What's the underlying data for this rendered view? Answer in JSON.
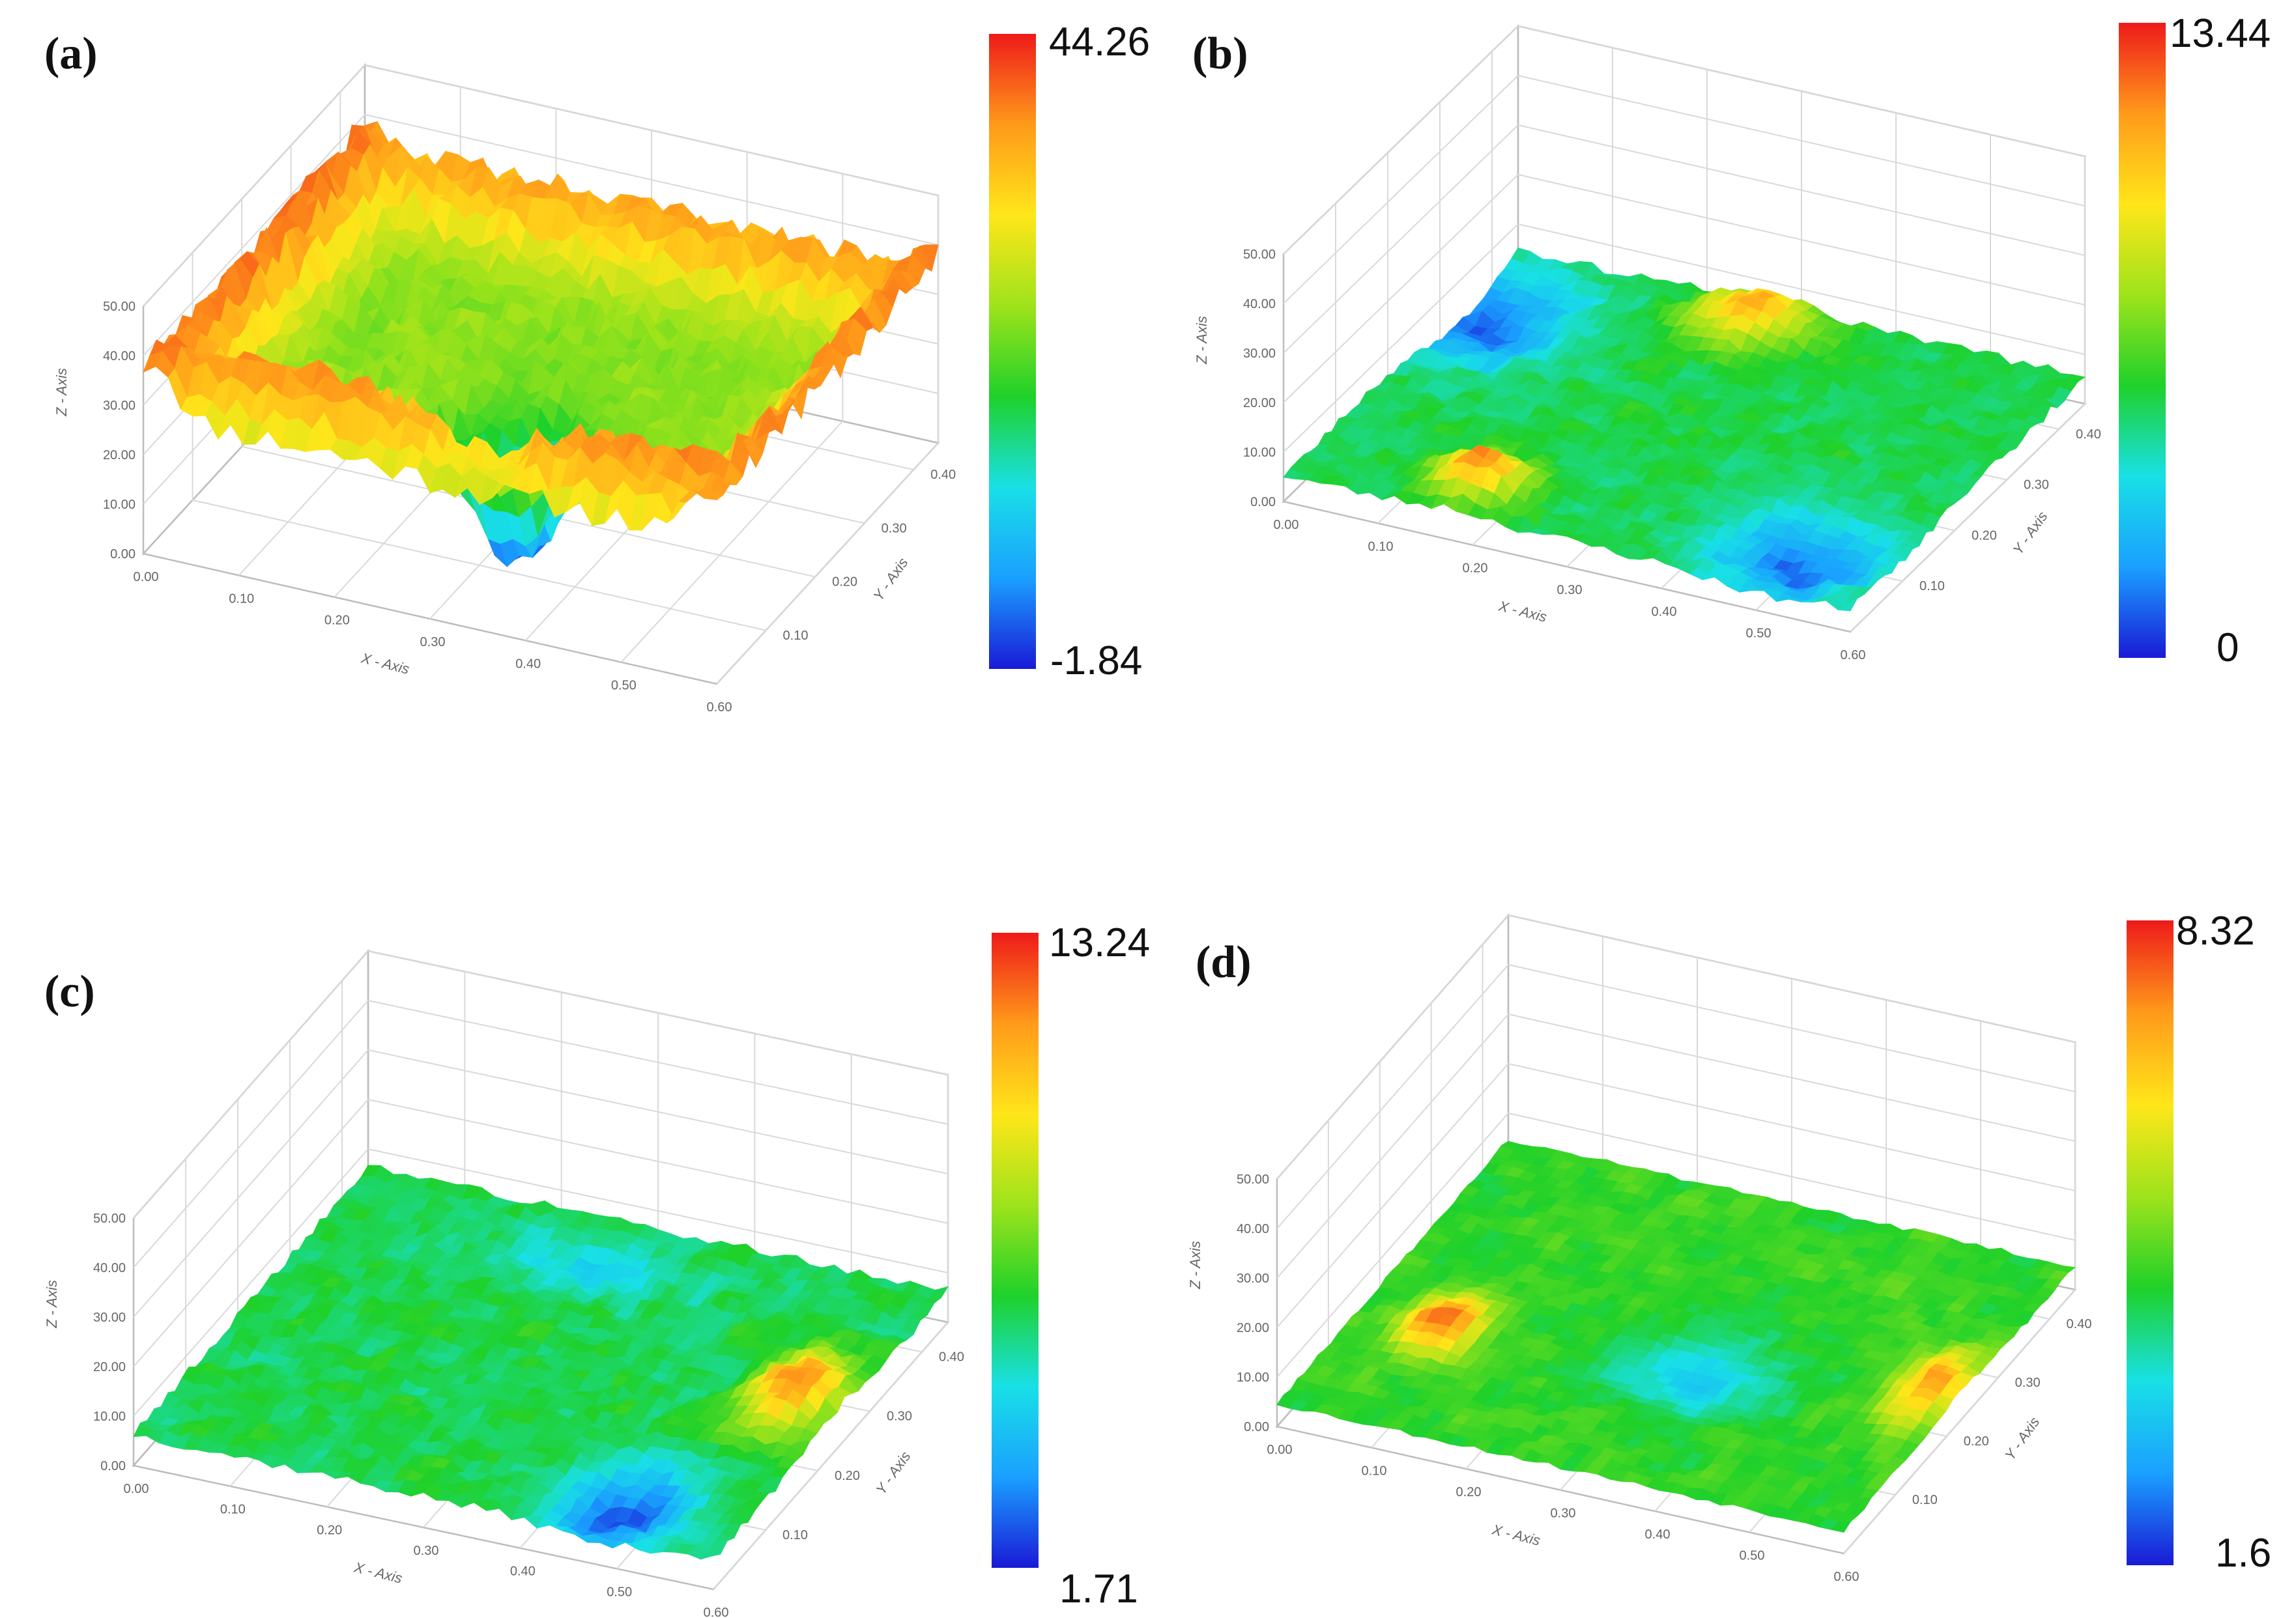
{
  "chart_data": [
    {
      "type": "surface",
      "panel_label": "(a)",
      "xlabel": "X - Axis",
      "ylabel": "Y - Axis",
      "zlabel": "Z - Axis",
      "xlim": [
        0,
        0.6
      ],
      "ylim": [
        0,
        0.45
      ],
      "zlim": [
        0,
        50
      ],
      "x_ticks": [
        "0.00",
        "0.10",
        "0.20",
        "0.30",
        "0.40",
        "0.50",
        "0.60"
      ],
      "y_ticks": [
        "0.10",
        "0.20",
        "0.30",
        "0.40"
      ],
      "z_ticks": [
        "0.00",
        "10.00",
        "20.00",
        "30.00",
        "40.00",
        "50.00"
      ],
      "colorbar": {
        "max": "44.26",
        "min": "-1.84"
      },
      "z_range": [
        -1.84,
        44.26
      ]
    },
    {
      "type": "surface",
      "panel_label": "(b)",
      "xlabel": "X - Axis",
      "ylabel": "Y - Axis",
      "zlabel": "Z - Axis",
      "xlim": [
        0,
        0.6
      ],
      "ylim": [
        0,
        0.45
      ],
      "zlim": [
        0,
        50
      ],
      "x_ticks": [
        "0.00",
        "0.10",
        "0.20",
        "0.30",
        "0.40",
        "0.50",
        "0.60"
      ],
      "y_ticks": [
        "0.10",
        "0.20",
        "0.30",
        "0.40"
      ],
      "z_ticks": [
        "0.00",
        "10.00",
        "20.00",
        "30.00",
        "40.00",
        "50.00"
      ],
      "colorbar": {
        "max": "13.44",
        "min": "0"
      },
      "z_range": [
        0,
        13.44
      ]
    },
    {
      "type": "surface",
      "panel_label": "(c)",
      "xlabel": "X - Axis",
      "ylabel": "Y - Axis",
      "zlabel": "Z - Axis",
      "xlim": [
        0,
        0.6
      ],
      "ylim": [
        0,
        0.45
      ],
      "zlim": [
        0,
        50
      ],
      "x_ticks": [
        "0.00",
        "0.10",
        "0.20",
        "0.30",
        "0.40",
        "0.50",
        "0.60"
      ],
      "y_ticks": [
        "0.10",
        "0.20",
        "0.30",
        "0.40"
      ],
      "z_ticks": [
        "0.00",
        "10.00",
        "20.00",
        "30.00",
        "40.00",
        "50.00"
      ],
      "colorbar": {
        "max": "13.24",
        "min": "1.71"
      },
      "z_range": [
        1.71,
        13.24
      ]
    },
    {
      "type": "surface",
      "panel_label": "(d)",
      "xlabel": "X - Axis",
      "ylabel": "Y - Axis",
      "zlabel": "Z - Axis",
      "xlim": [
        0,
        0.6
      ],
      "ylim": [
        0,
        0.45
      ],
      "zlim": [
        0,
        50
      ],
      "x_ticks": [
        "0.00",
        "0.10",
        "0.20",
        "0.30",
        "0.40",
        "0.50",
        "0.60"
      ],
      "y_ticks": [
        "0.10",
        "0.20",
        "0.30",
        "0.40"
      ],
      "z_ticks": [
        "0.00",
        "10.00",
        "20.00",
        "30.00",
        "40.00",
        "50.00"
      ],
      "colorbar": {
        "max": "8.32",
        "min": "1.6"
      },
      "z_range": [
        1.6,
        8.32
      ]
    }
  ],
  "colors": {
    "colormap": [
      "#1a1ad6",
      "#1aa0ff",
      "#19e0e6",
      "#1fd12a",
      "#9ee31b",
      "#ffe61a",
      "#ff9a1a",
      "#ee1a1a"
    ],
    "grid": "#d9d9d9",
    "frame": "#bdbdbd",
    "tick_text": "#666666"
  }
}
